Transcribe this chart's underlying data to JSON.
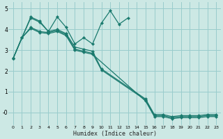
{
  "xlabel": "Humidex (Indice chaleur)",
  "bg_color": "#cce8e4",
  "grid_color": "#99cccc",
  "line_color": "#1a7a6e",
  "xlim": [
    -0.5,
    23.5
  ],
  "ylim": [
    -0.6,
    5.3
  ],
  "xtick_labels": [
    "0",
    "1",
    "2",
    "3",
    "4",
    "5",
    "6",
    "7",
    "8",
    "9",
    "10",
    "11",
    "12",
    "13",
    "14",
    "15",
    "16",
    "17",
    "18",
    "19",
    "20",
    "21",
    "22",
    "23"
  ],
  "ytick_vals": [
    0,
    1,
    2,
    3,
    4,
    5
  ],
  "ytick_labels": [
    "-0",
    "1",
    "2",
    "3",
    "4",
    "5"
  ],
  "series": [
    {
      "x": [
        0,
        1,
        2,
        3,
        4,
        5,
        6,
        7,
        8,
        9,
        10,
        11,
        12,
        13
      ],
      "y": [
        2.6,
        3.6,
        4.6,
        4.4,
        3.9,
        4.6,
        4.1,
        3.3,
        3.6,
        3.3,
        4.3,
        4.9,
        4.25,
        4.55
      ]
    },
    {
      "x": [
        0,
        1,
        2,
        3,
        4,
        5,
        6,
        7,
        8,
        9,
        10,
        15,
        16,
        17,
        18,
        19,
        20,
        21,
        22,
        23
      ],
      "y": [
        2.6,
        3.6,
        4.55,
        4.35,
        3.9,
        4.0,
        3.8,
        3.15,
        3.05,
        2.95,
        2.1,
        0.65,
        -0.1,
        -0.1,
        -0.2,
        -0.15,
        -0.15,
        -0.15,
        -0.1,
        -0.1
      ]
    },
    {
      "x": [
        0,
        1,
        2,
        3,
        4,
        5,
        6,
        7,
        8,
        9,
        10,
        15,
        16,
        17,
        18,
        19,
        20,
        21,
        22,
        23
      ],
      "y": [
        2.6,
        3.6,
        4.1,
        3.9,
        3.85,
        3.95,
        3.75,
        3.05,
        2.95,
        2.85,
        2.05,
        0.6,
        -0.15,
        -0.15,
        -0.25,
        -0.2,
        -0.2,
        -0.2,
        -0.15,
        -0.15
      ]
    },
    {
      "x": [
        0,
        1,
        2,
        3,
        4,
        5,
        6,
        7,
        8,
        9,
        15,
        16,
        17,
        18,
        19,
        20,
        21,
        22,
        23
      ],
      "y": [
        2.6,
        3.6,
        4.05,
        3.85,
        3.8,
        3.9,
        3.7,
        3.0,
        2.9,
        2.8,
        0.55,
        -0.2,
        -0.2,
        -0.3,
        -0.25,
        -0.25,
        -0.25,
        -0.2,
        -0.2
      ]
    }
  ]
}
